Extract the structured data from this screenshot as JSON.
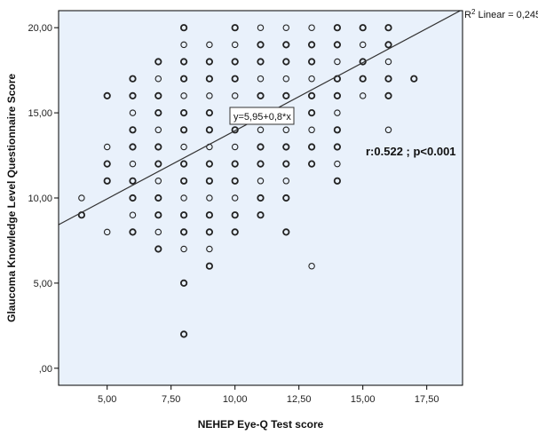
{
  "chart_data": {
    "type": "scatter",
    "xlabel": "NEHEP Eye-Q Test score",
    "ylabel": "Glaucoma Knowledge Level Questionnaire Score",
    "xlim": [
      3.1,
      18.9
    ],
    "ylim": [
      -1.0,
      21.0
    ],
    "x_ticks": [
      5,
      7.5,
      10,
      12.5,
      15,
      17.5
    ],
    "x_tick_labels": [
      "5,00",
      "7,50",
      "10,00",
      "12,50",
      "15,00",
      "17,50"
    ],
    "y_ticks": [
      0,
      5,
      10,
      15,
      20
    ],
    "y_tick_labels": [
      ",00",
      "5,00",
      "10,00",
      "15,00",
      "20,00"
    ],
    "plot_background": "#e9f1fb",
    "marker_color": "#222222",
    "fit_line": {
      "intercept": 5.95,
      "slope": 0.8,
      "color": "#333333"
    },
    "equation_label": "y=5,95+0,8*x",
    "r2_prefix": "R",
    "r2_sup": "2",
    "r2_suffix": " Linear = 0,245",
    "stat_label": "r:0.522 ; p<0.001",
    "grid": false,
    "points": [
      [
        4,
        10
      ],
      [
        4,
        9
      ],
      [
        5,
        16
      ],
      [
        5,
        13
      ],
      [
        5,
        12
      ],
      [
        5,
        11
      ],
      [
        5,
        8
      ],
      [
        6,
        17
      ],
      [
        6,
        16
      ],
      [
        6,
        15
      ],
      [
        6,
        14
      ],
      [
        6,
        13
      ],
      [
        6,
        12
      ],
      [
        6,
        11
      ],
      [
        6,
        10
      ],
      [
        6,
        9
      ],
      [
        6,
        8
      ],
      [
        7,
        18
      ],
      [
        7,
        17
      ],
      [
        7,
        16
      ],
      [
        7,
        15
      ],
      [
        7,
        14
      ],
      [
        7,
        13
      ],
      [
        7,
        12
      ],
      [
        7,
        11
      ],
      [
        7,
        10
      ],
      [
        7,
        9
      ],
      [
        7,
        8
      ],
      [
        7,
        7
      ],
      [
        8,
        20
      ],
      [
        8,
        19
      ],
      [
        8,
        18
      ],
      [
        8,
        17
      ],
      [
        8,
        16
      ],
      [
        8,
        15
      ],
      [
        8,
        14
      ],
      [
        8,
        13
      ],
      [
        8,
        12
      ],
      [
        8,
        11
      ],
      [
        8,
        10
      ],
      [
        8,
        9
      ],
      [
        8,
        8
      ],
      [
        8,
        7
      ],
      [
        8,
        5
      ],
      [
        8,
        2
      ],
      [
        9,
        19
      ],
      [
        9,
        18
      ],
      [
        9,
        17
      ],
      [
        9,
        16
      ],
      [
        9,
        15
      ],
      [
        9,
        14
      ],
      [
        9,
        13
      ],
      [
        9,
        12
      ],
      [
        9,
        11
      ],
      [
        9,
        10
      ],
      [
        9,
        9
      ],
      [
        9,
        8
      ],
      [
        9,
        7
      ],
      [
        9,
        6
      ],
      [
        10,
        20
      ],
      [
        10,
        19
      ],
      [
        10,
        18
      ],
      [
        10,
        17
      ],
      [
        10,
        16
      ],
      [
        10,
        15
      ],
      [
        10,
        14
      ],
      [
        10,
        13
      ],
      [
        10,
        12
      ],
      [
        10,
        11
      ],
      [
        10,
        10
      ],
      [
        10,
        9
      ],
      [
        10,
        8
      ],
      [
        11,
        20
      ],
      [
        11,
        19
      ],
      [
        11,
        18
      ],
      [
        11,
        17
      ],
      [
        11,
        16
      ],
      [
        11,
        15
      ],
      [
        11,
        14
      ],
      [
        11,
        13
      ],
      [
        11,
        12
      ],
      [
        11,
        11
      ],
      [
        11,
        10
      ],
      [
        11,
        9
      ],
      [
        12,
        20
      ],
      [
        12,
        19
      ],
      [
        12,
        18
      ],
      [
        12,
        17
      ],
      [
        12,
        16
      ],
      [
        12,
        15
      ],
      [
        12,
        14
      ],
      [
        12,
        13
      ],
      [
        12,
        12
      ],
      [
        12,
        11
      ],
      [
        12,
        10
      ],
      [
        12,
        8
      ],
      [
        13,
        20
      ],
      [
        13,
        19
      ],
      [
        13,
        18
      ],
      [
        13,
        17
      ],
      [
        13,
        16
      ],
      [
        13,
        15
      ],
      [
        13,
        14
      ],
      [
        13,
        13
      ],
      [
        13,
        12
      ],
      [
        13,
        6
      ],
      [
        14,
        20
      ],
      [
        14,
        19
      ],
      [
        14,
        18
      ],
      [
        14,
        17
      ],
      [
        14,
        16
      ],
      [
        14,
        15
      ],
      [
        14,
        14
      ],
      [
        14,
        13
      ],
      [
        14,
        12
      ],
      [
        14,
        11
      ],
      [
        15,
        20
      ],
      [
        15,
        19
      ],
      [
        15,
        18
      ],
      [
        15,
        17
      ],
      [
        15,
        16
      ],
      [
        16,
        20
      ],
      [
        16,
        19
      ],
      [
        16,
        18
      ],
      [
        16,
        17
      ],
      [
        16,
        16
      ],
      [
        16,
        14
      ],
      [
        17,
        17
      ]
    ]
  }
}
